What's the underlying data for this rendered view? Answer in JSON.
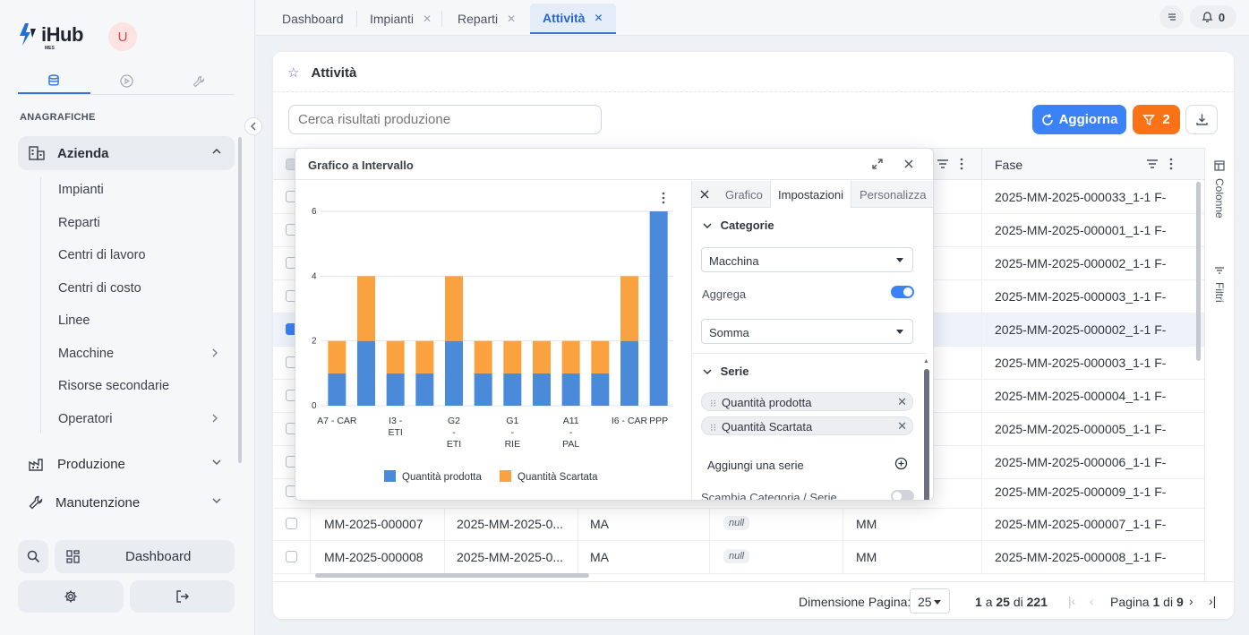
{
  "app": {
    "logo_text": "iHub",
    "logo_sub": "MES",
    "avatar_initial": "U"
  },
  "sidebar": {
    "section_title": "ANAGRAFICHE",
    "groups": [
      {
        "label": "Azienda"
      },
      {
        "label": "Produzione"
      },
      {
        "label": "Manutenzione"
      }
    ],
    "azienda_items": [
      "Impianti",
      "Reparti",
      "Centri di lavoro",
      "Centri di costo",
      "Linee",
      "Macchine",
      "Risorse secondarie",
      "Operatori"
    ],
    "dashboard_label": "Dashboard"
  },
  "tabs": [
    {
      "label": "Dashboard"
    },
    {
      "label": "Impianti"
    },
    {
      "label": "Reparti"
    },
    {
      "label": "Attività"
    }
  ],
  "notifications_count": "0",
  "page": {
    "title": "Attività",
    "search_placeholder": "Cerca risultati produzione",
    "refresh_label": "Aggiorna",
    "filter_count": "2"
  },
  "grid": {
    "fase_header": "Fase",
    "rows": [
      {
        "fase": "2025-MM-2025-000033_1-1 F-"
      },
      {
        "fase": "2025-MM-2025-000001_1-1 F-"
      },
      {
        "fase": "2025-MM-2025-000002_1-1 F-"
      },
      {
        "fase": "2025-MM-2025-000003_1-1 F-"
      },
      {
        "fase": "2025-MM-2025-000002_1-1 F-"
      },
      {
        "fase": "2025-MM-2025-000003_1-1 F-"
      },
      {
        "fase": "2025-MM-2025-000004_1-1 F-"
      },
      {
        "fase": "2025-MM-2025-000005_1-1 F-"
      },
      {
        "fase": "2025-MM-2025-000006_1-1 F-"
      },
      {
        "fase": "2025-MM-2025-000009_1-1 F-"
      },
      {
        "c1": "MM-2025-000007",
        "c2": "2025-MM-2025-0...",
        "c3": "MA",
        "c4": "null",
        "c5": "MM",
        "fase": "2025-MM-2025-000007_1-1 F-"
      },
      {
        "c1": "MM-2025-000008",
        "c2": "2025-MM-2025-0...",
        "c3": "MA",
        "c4": "null",
        "c5": "MM",
        "fase": "2025-MM-2025-000008_1-1 F-"
      }
    ],
    "side_columns": "Colonne",
    "side_filters": "Filtri"
  },
  "footer": {
    "page_size_label": "Dimensione Pagina:",
    "page_size": "25",
    "range_a": "1",
    "range_mid": "a",
    "range_b": "25",
    "range_of": "di",
    "range_total": "221",
    "page_word": "Pagina",
    "page_num": "1",
    "page_of": "di",
    "page_total": "9"
  },
  "chart_popup": {
    "title": "Grafico a Intervallo",
    "tabs": [
      "Grafico",
      "Impostazioni",
      "Personalizza"
    ],
    "categorie_label": "Categorie",
    "categoria_value": "Macchina",
    "aggrega_label": "Aggrega",
    "aggregazione_value": "Somma",
    "serie_label": "Serie",
    "series_pills": [
      "Quantità prodotta",
      "Quantità Scartata"
    ],
    "add_series": "Aggiungi una serie",
    "swap_label": "Scambia Categoria / Serie",
    "colors": {
      "prodotta": "#4a8ad8",
      "scartata": "#f9a23f"
    }
  },
  "chart_data": {
    "type": "bar",
    "stacked": true,
    "categories": [
      "A7 - CAR",
      "A7 - CAR",
      "I3 - ETI",
      "I3 - ETI",
      "G2 - ETI",
      "G2 - ETI",
      "G1 - RIE",
      "G1 - RIE",
      "A11 - PAL",
      "A11 - PAL",
      "I6 - CAR",
      "PPP"
    ],
    "category_labels": [
      [
        "A7 - CAR"
      ],
      [],
      [
        "I3 -",
        "ETI"
      ],
      [],
      [
        "G2",
        "-",
        "ETI"
      ],
      [],
      [
        "G1",
        "-",
        "RIE"
      ],
      [],
      [
        "A11",
        "-",
        "PAL"
      ],
      [],
      [
        "I6 - CAR"
      ],
      [
        "PPP"
      ]
    ],
    "series": [
      {
        "name": "Quantità prodotta",
        "values": [
          1,
          2,
          1,
          1,
          2,
          1,
          1,
          1,
          1,
          1,
          2,
          6
        ]
      },
      {
        "name": "Quantità Scartata",
        "values": [
          1,
          2,
          1,
          1,
          2,
          1,
          1,
          1,
          1,
          1,
          2,
          0
        ]
      }
    ],
    "yticks": [
      "0",
      "2",
      "4",
      "6"
    ],
    "ylim": [
      0,
      6
    ],
    "grid": true,
    "legend": "bottom"
  }
}
